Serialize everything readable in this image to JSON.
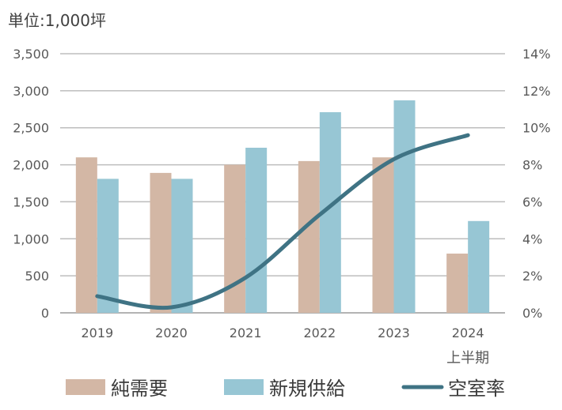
{
  "chart_data": {
    "type": "bar",
    "unit_label": "単位:1,000坪",
    "categories": [
      "2019",
      "2020",
      "2021",
      "2022",
      "2023",
      "2024"
    ],
    "category_sublabels": [
      "",
      "",
      "",
      "",
      "",
      "上半期"
    ],
    "series": [
      {
        "name": "純需要",
        "color": "#D3B7A5",
        "values": [
          2100,
          1890,
          2000,
          2050,
          2100,
          800
        ]
      },
      {
        "name": "新規供給",
        "color": "#97C6D4",
        "values": [
          1810,
          1810,
          2230,
          2710,
          2870,
          1240
        ]
      }
    ],
    "secondary_series": {
      "name": "空室率",
      "color": "#3F7384",
      "values": [
        0.9,
        0.3,
        1.9,
        5.3,
        8.3,
        9.6
      ]
    },
    "y_left": {
      "ylim": [
        0,
        3500
      ],
      "ticks": [
        0,
        500,
        1000,
        1500,
        2000,
        2500,
        3000,
        3500
      ],
      "tick_labels": [
        "0",
        "500",
        "1,000",
        "1,500",
        "2,000",
        "2,500",
        "3,000",
        "3,500"
      ]
    },
    "y_right": {
      "ylim": [
        0,
        14
      ],
      "ticks": [
        0,
        2,
        4,
        6,
        8,
        10,
        12,
        14
      ],
      "tick_labels": [
        "0%",
        "2%",
        "4%",
        "6%",
        "8%",
        "10%",
        "12%",
        "14%"
      ]
    },
    "grid": true,
    "legend_position": "bottom"
  }
}
